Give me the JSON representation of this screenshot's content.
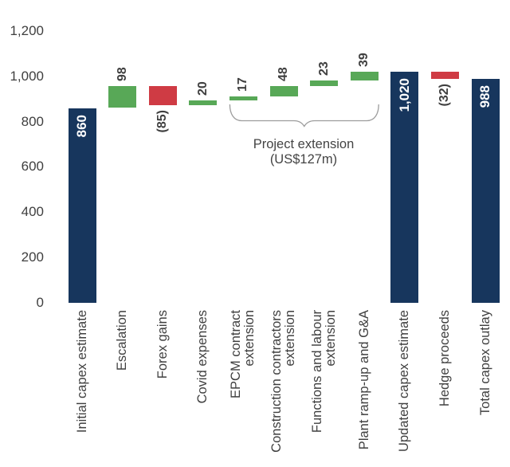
{
  "colors": {
    "total_bar": "#17365D",
    "increase_bar": "#58A857",
    "decrease_bar": "#CF3B44",
    "bar_label_inside": "#FFFFFF",
    "text": "#3F3F3F",
    "brace": "#9C9C9C",
    "background": "#FFFFFF"
  },
  "annotation": {
    "line1": "Project extension",
    "line2": "(US$127m)",
    "from_bar": 4,
    "to_bar": 7
  },
  "chart_data": {
    "type": "bar",
    "subtype": "waterfall",
    "title": "",
    "xlabel": "",
    "ylabel": "",
    "ylim": [
      0,
      1200
    ],
    "grid": false,
    "legend": false,
    "y_ticks": [
      {
        "label": "0",
        "value": 0
      },
      {
        "label": "200",
        "value": 200
      },
      {
        "label": "400",
        "value": 400
      },
      {
        "label": "600",
        "value": 600
      },
      {
        "label": "800",
        "value": 800
      },
      {
        "label": "1,000",
        "value": 1000
      },
      {
        "label": "1,200",
        "value": 1200
      }
    ],
    "categories": [
      "Initial capex estimate",
      "Escalation",
      "Forex gains",
      "Covid expenses",
      "EPCM contract extension",
      "Construction contractors extension",
      "Functions and labour extension",
      "Plant ramp-up and G&A",
      "Updated capex estimate",
      "Hedge proceeds",
      "Total capex outlay"
    ],
    "bars": [
      {
        "label": "Initial capex estimate",
        "label_lines": [
          "Initial capex estimate"
        ],
        "value": 860,
        "display": "860",
        "kind": "total",
        "start": 0,
        "end": 860
      },
      {
        "label": "Escalation",
        "label_lines": [
          "Escalation"
        ],
        "value": 98,
        "display": "98",
        "kind": "increase",
        "start": 860,
        "end": 958
      },
      {
        "label": "Forex gains",
        "label_lines": [
          "Forex gains"
        ],
        "value": -85,
        "display": "(85)",
        "kind": "decrease",
        "start": 958,
        "end": 873
      },
      {
        "label": "Covid expenses",
        "label_lines": [
          "Covid expenses"
        ],
        "value": 20,
        "display": "20",
        "kind": "increase",
        "start": 873,
        "end": 893
      },
      {
        "label": "EPCM contract extension",
        "label_lines": [
          "EPCM contract",
          "extension"
        ],
        "value": 17,
        "display": "17",
        "kind": "increase",
        "start": 893,
        "end": 910
      },
      {
        "label": "Construction contractors extension",
        "label_lines": [
          "Construction contractors",
          "extension"
        ],
        "value": 48,
        "display": "48",
        "kind": "increase",
        "start": 910,
        "end": 958
      },
      {
        "label": "Functions and labour extension",
        "label_lines": [
          "Functions and labour",
          "extension"
        ],
        "value": 23,
        "display": "23",
        "kind": "increase",
        "start": 958,
        "end": 981
      },
      {
        "label": "Plant ramp-up and G&A",
        "label_lines": [
          "Plant ramp-up and G&A"
        ],
        "value": 39,
        "display": "39",
        "kind": "increase",
        "start": 981,
        "end": 1020
      },
      {
        "label": "Updated capex estimate",
        "label_lines": [
          "Updated capex estimate"
        ],
        "value": 1020,
        "display": "1,020",
        "kind": "total",
        "start": 0,
        "end": 1020
      },
      {
        "label": "Hedge proceeds",
        "label_lines": [
          "Hedge proceeds"
        ],
        "value": -32,
        "display": "(32)",
        "kind": "decrease",
        "start": 1020,
        "end": 988
      },
      {
        "label": "Total capex outlay",
        "label_lines": [
          "Total capex outlay"
        ],
        "value": 988,
        "display": "988",
        "kind": "total",
        "start": 0,
        "end": 988
      }
    ]
  }
}
